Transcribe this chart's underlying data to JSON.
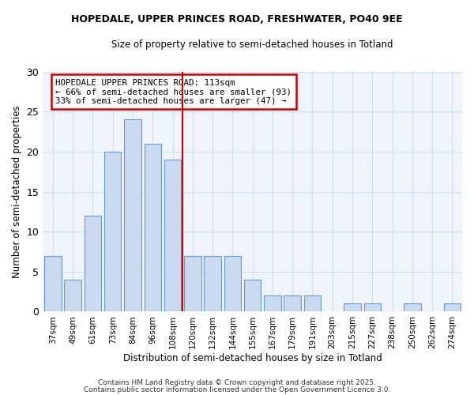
{
  "title1": "HOPEDALE, UPPER PRINCES ROAD, FRESHWATER, PO40 9EE",
  "title2": "Size of property relative to semi-detached houses in Totland",
  "xlabel": "Distribution of semi-detached houses by size in Totland",
  "ylabel": "Number of semi-detached properties",
  "bins": [
    "37sqm",
    "49sqm",
    "61sqm",
    "73sqm",
    "84sqm",
    "96sqm",
    "108sqm",
    "120sqm",
    "132sqm",
    "144sqm",
    "155sqm",
    "167sqm",
    "179sqm",
    "191sqm",
    "203sqm",
    "215sqm",
    "227sqm",
    "238sqm",
    "250sqm",
    "262sqm",
    "274sqm"
  ],
  "values": [
    7,
    4,
    12,
    20,
    24,
    21,
    19,
    7,
    7,
    7,
    4,
    2,
    2,
    2,
    0,
    1,
    1,
    0,
    1,
    0,
    1
  ],
  "bar_color": "#c9d9f0",
  "bar_edge_color": "#6699cc",
  "annotation_title": "HOPEDALE UPPER PRINCES ROAD: 113sqm",
  "annotation_line2": "← 66% of semi-detached houses are smaller (93)",
  "annotation_line3": "33% of semi-detached houses are larger (47) →",
  "annotation_box_color": "#ffffff",
  "annotation_box_edge": "#cc0000",
  "grid_color": "#ccddee",
  "background_color": "#ffffff",
  "plot_bg_color": "#f0f4fa",
  "ylim": [
    0,
    30
  ],
  "yticks": [
    0,
    5,
    10,
    15,
    20,
    25,
    30
  ],
  "footer1": "Contains HM Land Registry data © Crown copyright and database right 2025.",
  "footer2": "Contains public sector information licensed under the Open Government Licence 3.0."
}
